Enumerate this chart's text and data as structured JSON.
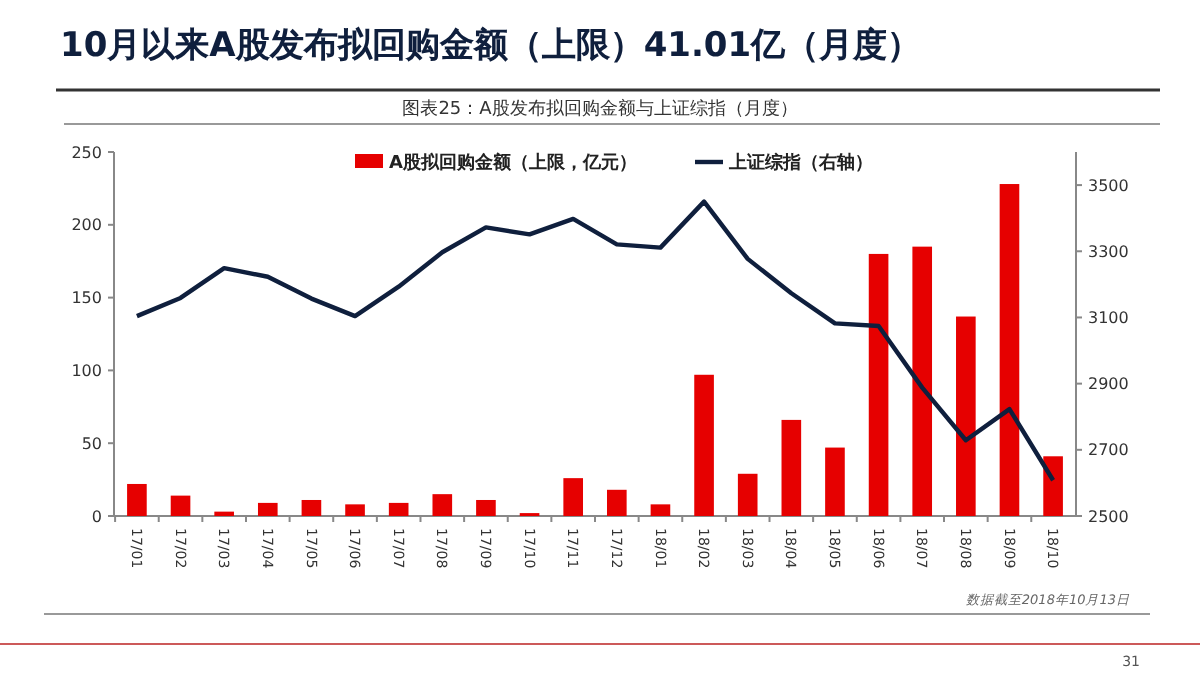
{
  "chart_data": {
    "type": "bar",
    "title": "10月以来A股发布拟回购金额（上限）41.01亿（月度）",
    "subtitle": "图表25：A股发布拟回购金额与上证综指（月度）",
    "categories": [
      "17/01",
      "17/02",
      "17/03",
      "17/04",
      "17/05",
      "17/06",
      "17/07",
      "17/08",
      "17/09",
      "17/10",
      "17/11",
      "17/12",
      "18/01",
      "18/02",
      "18/03",
      "18/04",
      "18/05",
      "18/06",
      "18/07",
      "18/08",
      "18/09",
      "18/10"
    ],
    "series": [
      {
        "name": "A股拟回购金额（上限，亿元）",
        "color": "#e60000",
        "values": [
          22,
          14,
          3,
          9,
          11,
          8,
          9,
          15,
          11,
          2,
          26,
          18,
          8,
          97,
          29,
          66,
          47,
          180,
          185,
          137,
          228,
          41.01
        ]
      },
      {
        "name": "上证综指（右轴）",
        "type": "line",
        "axis": "y2",
        "color": "#0f1f3d",
        "values": [
          3104,
          3159,
          3249,
          3223,
          3157,
          3104,
          3193,
          3297,
          3372,
          3351,
          3398,
          3321,
          3311,
          3450,
          3277,
          3173,
          3082,
          3074,
          2888,
          2729,
          2823,
          2608
        ]
      }
    ],
    "ylim": [
      0,
      250
    ],
    "yticks": [
      0,
      50,
      100,
      150,
      200,
      250
    ],
    "y2lim": [
      2500,
      3600
    ],
    "y2ticks": [
      2500,
      2700,
      2900,
      3100,
      3300,
      3500
    ],
    "legend": "top",
    "annotations": [
      "数据截至2018年10月13日",
      "31"
    ]
  }
}
